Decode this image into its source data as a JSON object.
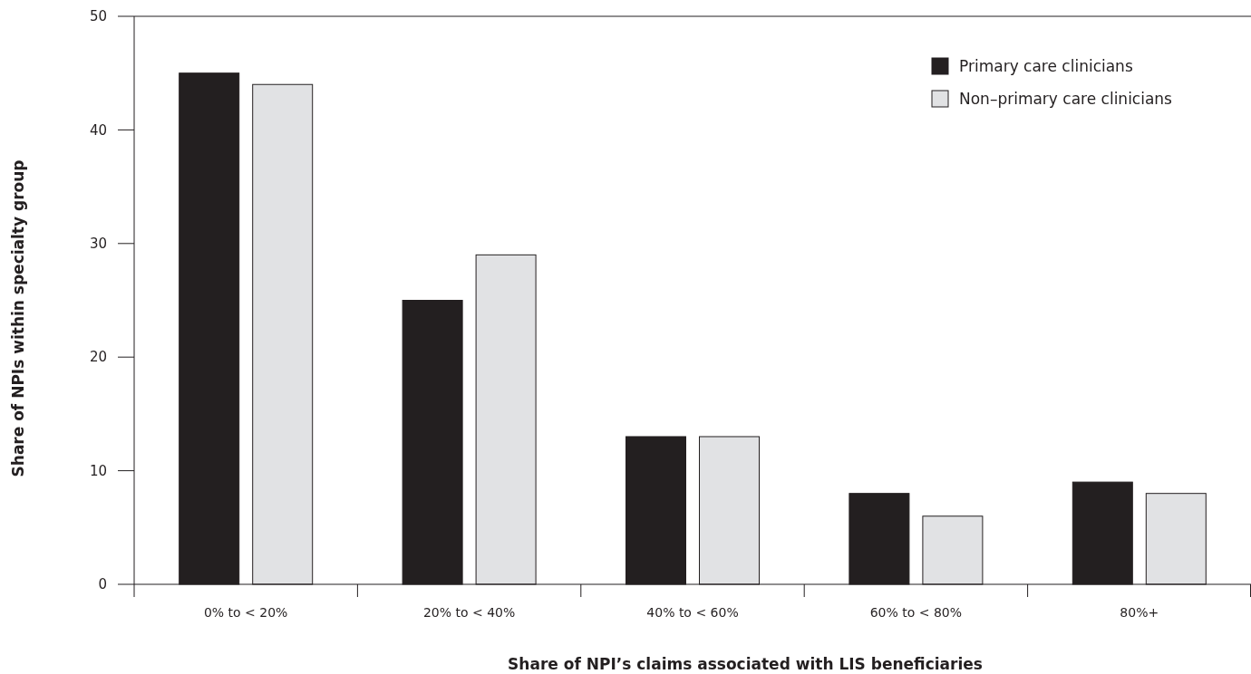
{
  "chart_data": {
    "type": "bar",
    "xlabel": "Share of NPI’s claims associated with LIS beneficiaries",
    "ylabel": "Share of NPIs within specialty group",
    "categories": [
      "0% to < 20%",
      "20% to < 40%",
      "40% to < 60%",
      "60% to < 80%",
      "80%+"
    ],
    "series": [
      {
        "name": "Primary care clinicians",
        "color": "#231f20",
        "values": [
          45,
          25,
          13,
          8,
          9
        ]
      },
      {
        "name": "Non–primary care clinicians",
        "color": "#e1e2e4",
        "values": [
          44,
          29,
          13,
          6,
          8
        ]
      }
    ],
    "ylim": [
      0,
      50
    ],
    "yticks": [
      0,
      10,
      20,
      30,
      40,
      50
    ],
    "grid": false,
    "legend": "top right"
  }
}
